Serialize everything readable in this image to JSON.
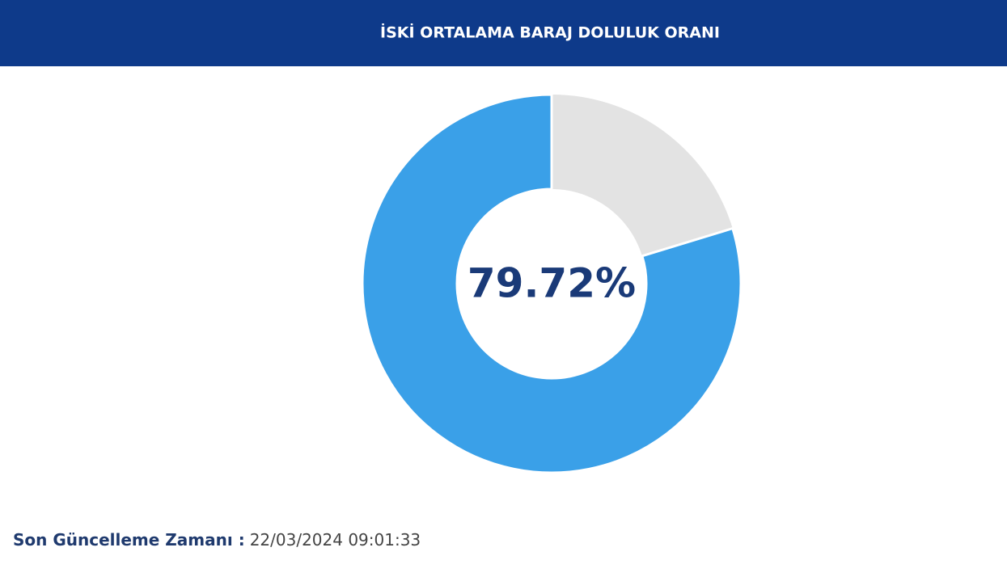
{
  "chart_data": {
    "type": "donut",
    "title": "İSKİ ORTALAMA BARAJ DOLULUK ORANI",
    "values": [
      79.72
    ],
    "value_labels": [
      "79.72%"
    ],
    "ylim": [
      0,
      100
    ],
    "color": "#3aa0e8",
    "track_color": "#e3e3e3",
    "footnote_label": "Son Güncelleme Zamanı :",
    "footnote_value": "22/03/2024 09:01:33"
  }
}
